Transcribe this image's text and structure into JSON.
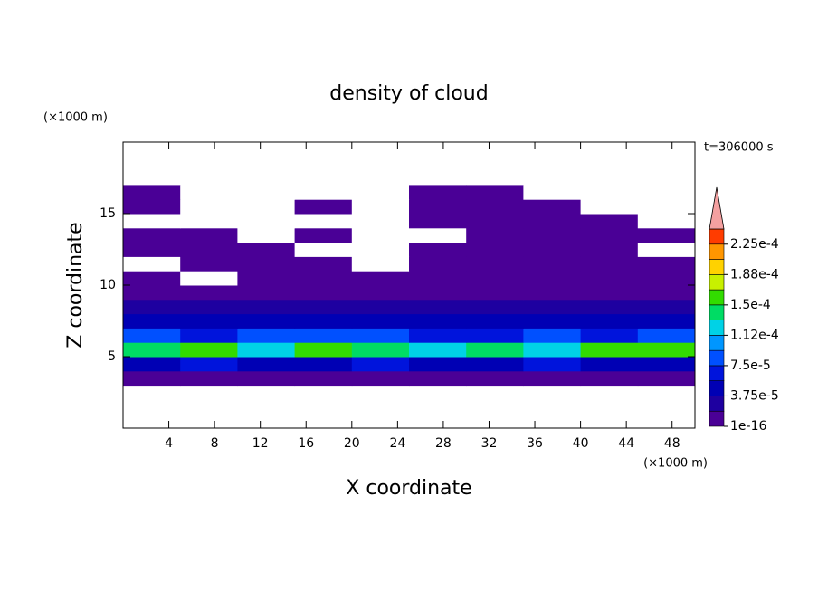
{
  "chart_data": {
    "type": "contour",
    "title": "density of cloud",
    "time_label": "t=306000 s",
    "xlabel": "X coordinate",
    "ylabel": "Z coordinate",
    "x_unit": "(×1000 m)",
    "y_unit": "(×1000 m)",
    "xlim": [
      0,
      50
    ],
    "ylim": [
      0,
      20
    ],
    "xticks": [
      4,
      8,
      12,
      16,
      20,
      24,
      28,
      32,
      36,
      40,
      44,
      48
    ],
    "yticks": [
      5,
      10,
      15
    ],
    "x": [
      2.5,
      7.5,
      12.5,
      17.5,
      22.5,
      27.5,
      32.5,
      37.5,
      42.5,
      47.5
    ],
    "y": [
      3.5,
      4.5,
      5.5,
      6.5,
      7.5,
      8.5,
      9.5,
      10.5,
      11.5,
      12.5,
      13.5,
      14.5,
      15.5,
      16.5
    ],
    "z": [
      [
        5e-06,
        5e-06,
        5e-06,
        5e-06,
        5e-06,
        5e-06,
        5e-06,
        5e-06,
        5e-06,
        5e-06
      ],
      [
        4e-05,
        6e-05,
        4.5e-05,
        5e-05,
        6e-05,
        4e-05,
        5e-05,
        6e-05,
        4e-05,
        5e-05
      ],
      [
        0.00014,
        0.00016,
        0.00013,
        0.00015,
        0.00014,
        0.00012,
        0.00014,
        0.00013,
        0.00015,
        0.00016
      ],
      [
        8e-05,
        7e-05,
        9e-05,
        7.5e-05,
        8e-05,
        7e-05,
        6.5e-05,
        8e-05,
        7e-05,
        9e-05
      ],
      [
        4.5e-05,
        4e-05,
        5e-05,
        4e-05,
        4.5e-05,
        4e-05,
        3.8e-05,
        4.2e-05,
        4e-05,
        4.5e-05
      ],
      [
        2.5e-05,
        2.2e-05,
        2.4e-05,
        2.8e-05,
        2.5e-05,
        2e-05,
        2.2e-05,
        2.5e-05,
        2.3e-05,
        2.6e-05
      ],
      [
        1.5e-05,
        1.2e-05,
        1.4e-05,
        1e-05,
        1.2e-05,
        1.5e-05,
        1.3e-05,
        1.6e-05,
        1.2e-05,
        1.4e-05
      ],
      [
        8e-06,
        0,
        8e-06,
        6e-06,
        5e-06,
        8e-06,
        9e-06,
        1e-05,
        8e-06,
        9e-06
      ],
      [
        0,
        5e-06,
        5e-06,
        5e-06,
        0,
        5e-06,
        5e-06,
        5e-06,
        5e-06,
        5e-06
      ],
      [
        5e-06,
        5e-06,
        5e-06,
        0,
        0,
        5e-06,
        5e-06,
        5e-06,
        5e-06,
        0
      ],
      [
        5e-06,
        5e-06,
        0,
        5e-06,
        0,
        0,
        5e-06,
        5e-06,
        5e-06,
        5e-06
      ],
      [
        0,
        0,
        0,
        0,
        0,
        5e-06,
        5e-06,
        5e-06,
        5e-06,
        0
      ],
      [
        5e-06,
        0,
        0,
        5e-06,
        0,
        5e-06,
        5e-06,
        5e-06,
        0,
        0
      ],
      [
        5e-06,
        0,
        0,
        0,
        0,
        5e-06,
        5e-06,
        0,
        0,
        0
      ]
    ],
    "levels": [
      1e-16,
      1.875e-05,
      3.75e-05,
      5.625e-05,
      7.5e-05,
      9.375e-05,
      0.0001125,
      0.00013125,
      0.00015,
      0.00016875,
      0.0001875,
      0.00020625,
      0.000225,
      0.00024375
    ],
    "colors": [
      "#4a0096",
      "#1e00a0",
      "#0000b4",
      "#0014dc",
      "#0050ff",
      "#0096ff",
      "#00d2e6",
      "#00dc64",
      "#32dc00",
      "#c8f000",
      "#ffd200",
      "#ff9600",
      "#ff3c00"
    ],
    "over_color": "#f4a0a0",
    "cticks": [
      {
        "value": 1e-16,
        "label": "1e-16"
      },
      {
        "value": 3.75e-05,
        "label": "3.75e-5"
      },
      {
        "value": 7.5e-05,
        "label": "7.5e-5"
      },
      {
        "value": 0.0001125,
        "label": "1.12e-4"
      },
      {
        "value": 0.00015,
        "label": "1.5e-4"
      },
      {
        "value": 0.0001875,
        "label": "1.88e-4"
      },
      {
        "value": 0.000225,
        "label": "2.25e-4"
      }
    ]
  }
}
